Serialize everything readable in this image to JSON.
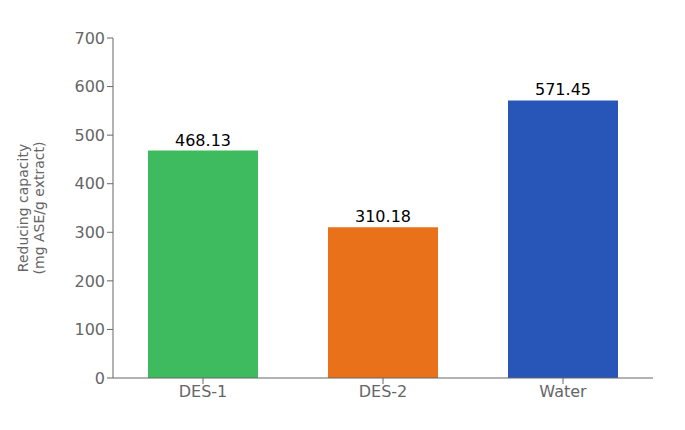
{
  "chart_data": {
    "type": "bar",
    "categories": [
      "DES-1",
      "DES-2",
      "Water"
    ],
    "values": [
      468.13,
      310.18,
      571.45
    ],
    "colors": [
      "#3dbb5e",
      "#e8711a",
      "#2755b8"
    ],
    "ylabel": "Reducing capacity\n(mg ASE/g extract)",
    "ylim": [
      0,
      700
    ],
    "yticks": [
      0,
      100,
      200,
      300,
      400,
      500,
      600,
      700
    ],
    "grid": false,
    "data_labels": true
  }
}
